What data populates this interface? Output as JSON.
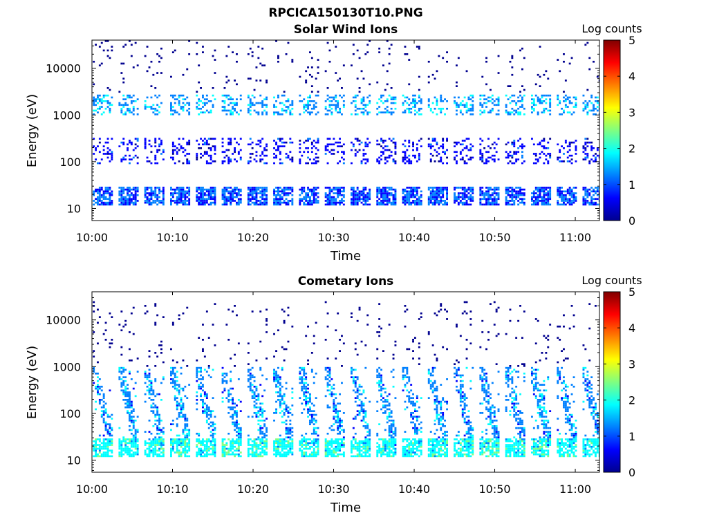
{
  "figure": {
    "title": "RPCICA150130T10.PNG"
  },
  "colors": {
    "colormap": [
      "#00008f",
      "#0000ff",
      "#0080ff",
      "#00ffff",
      "#80ff80",
      "#ffff00",
      "#ff8000",
      "#ff0000",
      "#800000"
    ]
  },
  "chart_data": [
    {
      "type": "heatmap",
      "title": "Solar Wind Ions",
      "xlabel": "Time",
      "ylabel": "Energy (eV)",
      "y_scale": "log",
      "xlim": [
        "10:00",
        "11:03"
      ],
      "ylim": [
        5.5,
        40000
      ],
      "x_ticks": [
        "10:00",
        "10:10",
        "10:20",
        "10:30",
        "10:40",
        "10:50",
        "11:00"
      ],
      "y_ticks": [
        "10",
        "100",
        "1000",
        "10000"
      ],
      "colorbar": {
        "label": "Log counts",
        "range": [
          0,
          5
        ],
        "ticks": [
          "0",
          "1",
          "2",
          "3",
          "4",
          "5"
        ]
      },
      "sweep_start_minutes": [
        0.1,
        3.3,
        6.5,
        9.7,
        12.9,
        16.1,
        19.3,
        22.5,
        25.7,
        28.9,
        32.1,
        35.3,
        38.5,
        41.7,
        44.9,
        48.1,
        51.3,
        54.5,
        57.7,
        60.9
      ],
      "sweep_duration_minutes": 2.3,
      "populations": [
        {
          "name": "low-energy band",
          "energy_range_eV": [
            12,
            28
          ],
          "log_counts": 1.0
        },
        {
          "name": "mid-energy band",
          "energy_range_eV": [
            90,
            320
          ],
          "log_counts": 0.6
        },
        {
          "name": "solar wind peak",
          "energy_range_eV": [
            1000,
            2800
          ],
          "log_counts": 1.4
        },
        {
          "name": "sparse high-energy",
          "energy_range_eV": [
            3000,
            40000
          ],
          "log_counts": 0.3
        }
      ]
    },
    {
      "type": "heatmap",
      "title": "Cometary Ions",
      "xlabel": "Time",
      "ylabel": "Energy (eV)",
      "y_scale": "log",
      "xlim": [
        "10:00",
        "11:03"
      ],
      "ylim": [
        5.5,
        40000
      ],
      "x_ticks": [
        "10:00",
        "10:10",
        "10:20",
        "10:30",
        "10:40",
        "10:50",
        "11:00"
      ],
      "y_ticks": [
        "10",
        "100",
        "1000",
        "10000"
      ],
      "colorbar": {
        "label": "Log counts",
        "range": [
          0,
          5
        ],
        "ticks": [
          "0",
          "1",
          "2",
          "3",
          "4",
          "5"
        ]
      },
      "sweep_start_minutes": [
        0.1,
        3.3,
        6.5,
        9.7,
        12.9,
        16.1,
        19.3,
        22.5,
        25.7,
        28.9,
        32.1,
        35.3,
        38.5,
        41.7,
        44.9,
        48.1,
        51.3,
        54.5,
        57.7,
        60.9
      ],
      "sweep_duration_minutes": 2.3,
      "populations": [
        {
          "name": "low-energy band",
          "energy_range_eV": [
            12,
            28
          ],
          "log_counts": 1.9
        },
        {
          "name": "cometary arc",
          "energy_range_eV": [
            20,
            1000
          ],
          "log_counts": 1.3
        },
        {
          "name": "sparse high-energy",
          "energy_range_eV": [
            1000,
            25000
          ],
          "log_counts": 0.3
        }
      ]
    }
  ]
}
